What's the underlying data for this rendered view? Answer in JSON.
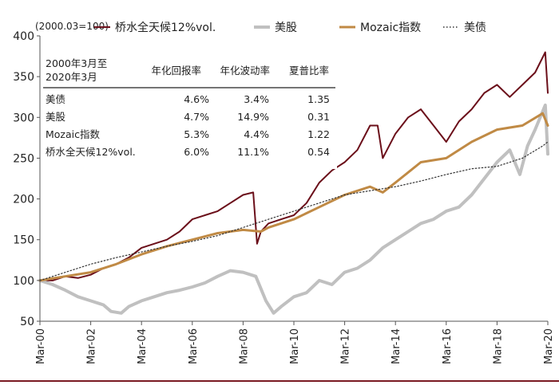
{
  "chart_data": {
    "type": "line",
    "unit_label": "(2000.03=100)",
    "ylim": [
      50,
      400
    ],
    "y_ticks": [
      "50",
      "100",
      "150",
      "200",
      "250",
      "300",
      "350",
      "400"
    ],
    "x_ticks": [
      "Mar-00",
      "Mar-02",
      "Mar-04",
      "Mar-06",
      "Mar-08",
      "Mar-10",
      "Mar-12",
      "Mar-14",
      "Mar-16",
      "Mar-18",
      "Mar-20"
    ],
    "x_range": [
      2000.0,
      2020.0
    ],
    "series": [
      {
        "name": "桥水全天候12%vol.",
        "color": "#6b0f1a",
        "dash": "",
        "width": 2,
        "x": [
          2000.0,
          2000.5,
          2001.0,
          2001.5,
          2002.0,
          2002.5,
          2003.0,
          2003.5,
          2004.0,
          2004.5,
          2005.0,
          2005.5,
          2006.0,
          2006.5,
          2007.0,
          2007.5,
          2008.0,
          2008.4,
          2008.55,
          2008.7,
          2009.0,
          2009.5,
          2010.0,
          2010.5,
          2011.0,
          2011.5,
          2012.0,
          2012.5,
          2013.0,
          2013.3,
          2013.5,
          2014.0,
          2014.5,
          2015.0,
          2015.5,
          2016.0,
          2016.5,
          2017.0,
          2017.5,
          2018.0,
          2018.5,
          2019.0,
          2019.5,
          2019.9,
          2020.0
        ],
        "values": [
          100,
          100,
          105,
          103,
          107,
          115,
          120,
          128,
          140,
          145,
          150,
          160,
          175,
          180,
          185,
          195,
          205,
          208,
          145,
          160,
          170,
          175,
          180,
          195,
          220,
          235,
          245,
          260,
          290,
          290,
          250,
          280,
          300,
          310,
          290,
          270,
          295,
          310,
          330,
          340,
          325,
          340,
          355,
          380,
          330
        ]
      },
      {
        "name": "美股",
        "color": "#c0c0c0",
        "dash": "",
        "width": 4,
        "x": [
          2000.0,
          2000.5,
          2001.0,
          2001.5,
          2002.0,
          2002.5,
          2002.8,
          2003.2,
          2003.5,
          2004.0,
          2004.5,
          2005.0,
          2005.5,
          2006.0,
          2006.5,
          2007.0,
          2007.5,
          2008.0,
          2008.5,
          2008.9,
          2009.2,
          2009.5,
          2010.0,
          2010.5,
          2011.0,
          2011.5,
          2012.0,
          2012.5,
          2013.0,
          2013.5,
          2014.0,
          2014.5,
          2015.0,
          2015.5,
          2016.0,
          2016.5,
          2017.0,
          2017.5,
          2018.0,
          2018.5,
          2018.9,
          2019.2,
          2019.5,
          2019.9,
          2020.0
        ],
        "values": [
          100,
          95,
          88,
          80,
          75,
          70,
          62,
          60,
          68,
          75,
          80,
          85,
          88,
          92,
          97,
          105,
          112,
          110,
          105,
          75,
          60,
          68,
          80,
          85,
          100,
          95,
          110,
          115,
          125,
          140,
          150,
          160,
          170,
          175,
          185,
          190,
          205,
          225,
          245,
          260,
          230,
          265,
          285,
          315,
          255
        ]
      },
      {
        "name": "Mozaic指数",
        "color": "#c08a45",
        "dash": "",
        "width": 3,
        "x": [
          2000.0,
          2001.0,
          2002.0,
          2003.0,
          2004.0,
          2005.0,
          2006.0,
          2007.0,
          2008.0,
          2008.7,
          2009.0,
          2010.0,
          2011.0,
          2012.0,
          2013.0,
          2013.5,
          2014.0,
          2015.0,
          2016.0,
          2017.0,
          2018.0,
          2019.0,
          2019.8,
          2020.0
        ],
        "values": [
          100,
          105,
          110,
          120,
          132,
          142,
          150,
          158,
          162,
          160,
          165,
          175,
          190,
          205,
          215,
          208,
          220,
          245,
          250,
          270,
          285,
          290,
          305,
          290
        ]
      },
      {
        "name": "美债",
        "color": "#333333",
        "dash": "1.5 2.5",
        "width": 1.2,
        "x": [
          2000.0,
          2001.0,
          2002.0,
          2003.0,
          2004.0,
          2005.0,
          2006.0,
          2007.0,
          2008.0,
          2009.0,
          2010.0,
          2011.0,
          2012.0,
          2013.0,
          2014.0,
          2015.0,
          2016.0,
          2017.0,
          2018.0,
          2019.0,
          2019.8,
          2020.0
        ],
        "values": [
          100,
          110,
          120,
          128,
          135,
          142,
          148,
          155,
          165,
          175,
          185,
          195,
          205,
          210,
          215,
          222,
          230,
          237,
          240,
          250,
          265,
          270
        ]
      }
    ],
    "table": {
      "header": [
        "2000年3月至\n2020年3月",
        "年化回报率",
        "年化波动率",
        "夏普比率"
      ],
      "rows": [
        [
          "美债",
          "4.6%",
          "3.4%",
          "1.35"
        ],
        [
          "美股",
          "4.7%",
          "14.9%",
          "0.31"
        ],
        [
          "Mozaic指数",
          "5.3%",
          "4.4%",
          "1.22"
        ],
        [
          "桥水全天候12%vol.",
          "6.0%",
          "11.1%",
          "0.54"
        ]
      ]
    }
  }
}
